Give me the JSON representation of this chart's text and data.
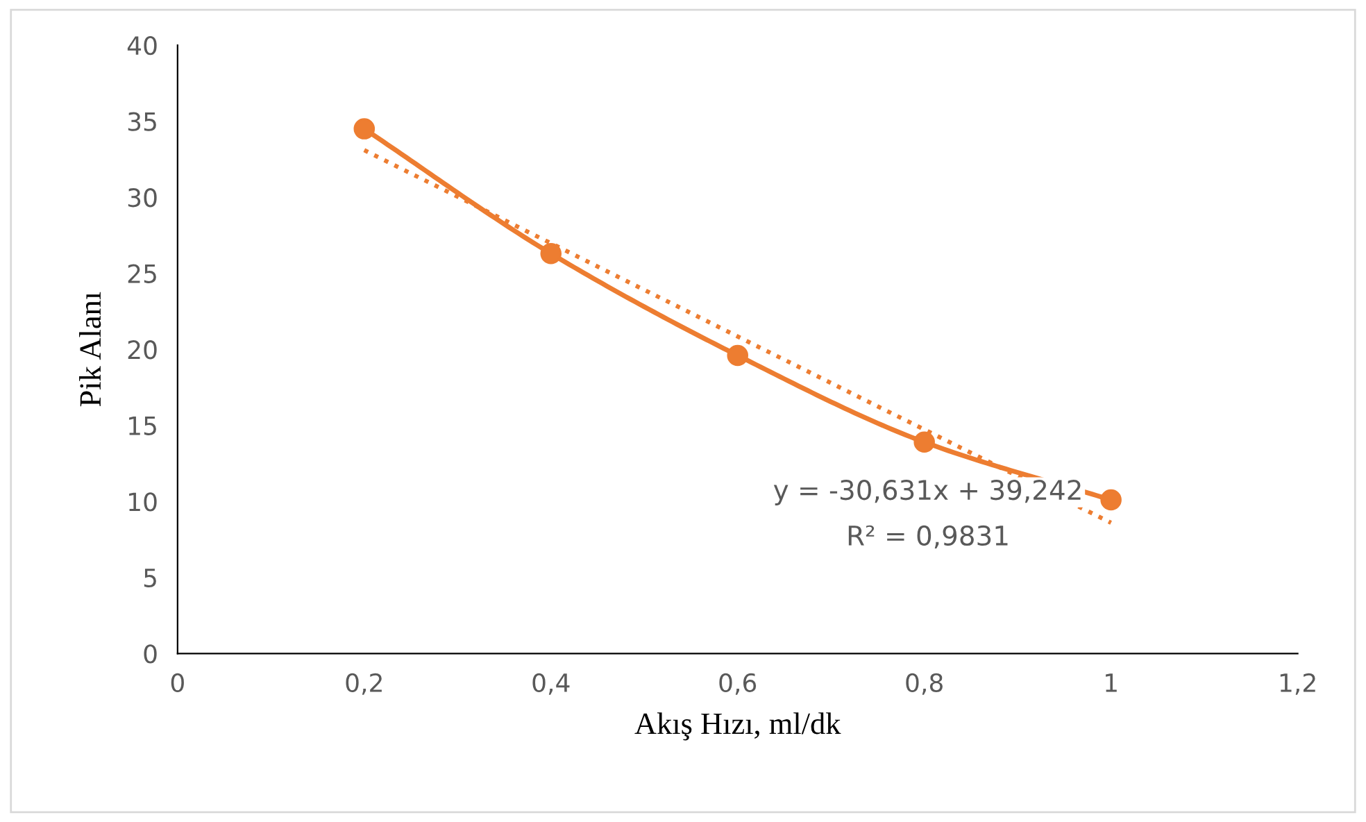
{
  "chart_data": {
    "type": "line",
    "xlabel": "Akış Hızı, ml/dk",
    "ylabel": "Pik Alanı",
    "x": [
      0.2,
      0.4,
      0.6,
      0.8,
      1.0
    ],
    "series": [
      {
        "color": "#ed7d31",
        "values": [
          34.5,
          26.3,
          19.6,
          13.9,
          10.1
        ],
        "marker": "circle",
        "line_style": "solid"
      },
      {
        "type": "line",
        "color": "#ed7d31",
        "x": [
          0.2,
          1.0
        ],
        "values": [
          33.1,
          8.6
        ],
        "marker": "none",
        "line_style": "dotted"
      }
    ],
    "xlim": [
      0,
      1.2
    ],
    "xticks": [
      0,
      {
        "value": 0.2,
        "label": "0,2"
      },
      {
        "value": 0.4,
        "label": "0,4"
      },
      {
        "value": 0.6,
        "label": "0,6"
      },
      {
        "value": 0.8,
        "label": "0,8"
      },
      1,
      {
        "value": 1.2,
        "label": "1,2"
      }
    ],
    "ylim": [
      0,
      40
    ],
    "yticks": [
      0,
      5,
      10,
      15,
      20,
      25,
      30,
      35,
      40
    ],
    "grid": false,
    "legend": false,
    "annotations": [
      "y = -30,631x + 39,242",
      "R² = 0,9831"
    ]
  }
}
